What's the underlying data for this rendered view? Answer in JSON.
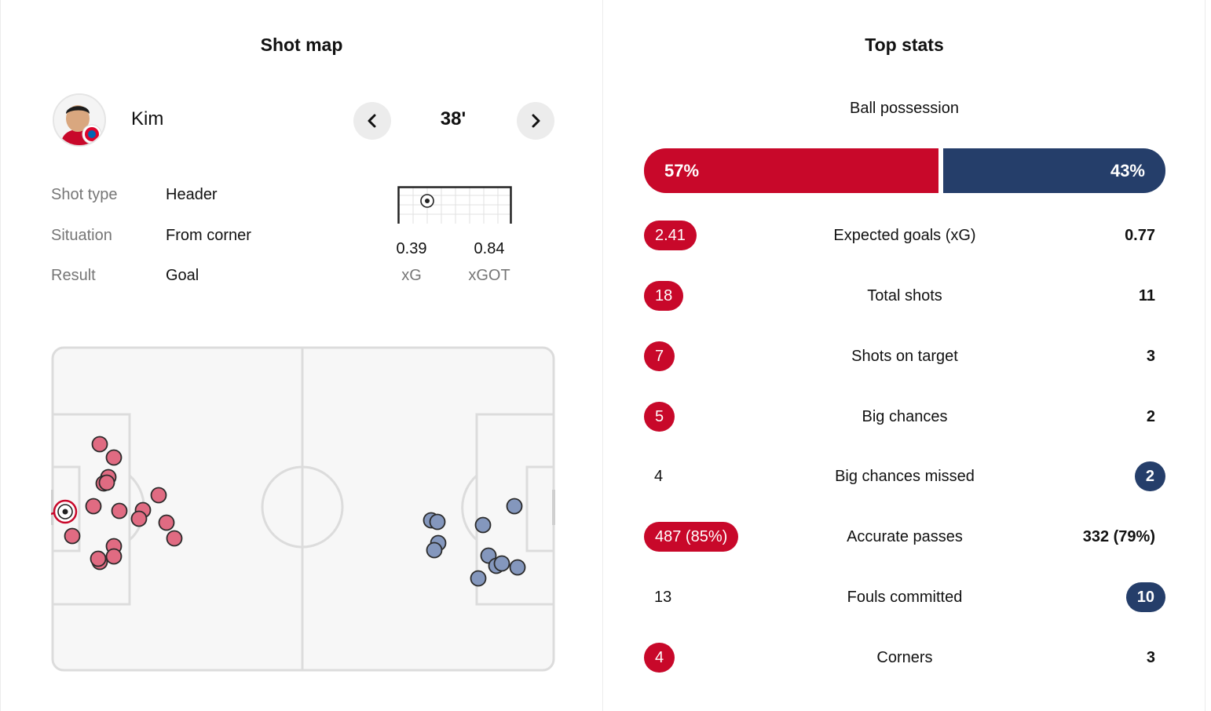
{
  "shot_map": {
    "title": "Shot map",
    "player": {
      "name": "Kim"
    },
    "minute": "38'",
    "details": [
      {
        "label": "Shot type",
        "value": "Header"
      },
      {
        "label": "Situation",
        "value": "From corner"
      },
      {
        "label": "Result",
        "value": "Goal"
      }
    ],
    "xg": {
      "value": "0.39",
      "label": "xG"
    },
    "xgot": {
      "value": "0.84",
      "label": "xGOT"
    }
  },
  "top_stats": {
    "title": "Top stats",
    "possession": {
      "label": "Ball possession",
      "home": "57%",
      "away": "43%",
      "home_fraction": 0.57
    },
    "rows": [
      {
        "name": "Expected goals (xG)",
        "home": "2.41",
        "away": "0.77",
        "highlight": "home"
      },
      {
        "name": "Total shots",
        "home": "18",
        "away": "11",
        "highlight": "home"
      },
      {
        "name": "Shots on target",
        "home": "7",
        "away": "3",
        "highlight": "home"
      },
      {
        "name": "Big chances",
        "home": "5",
        "away": "2",
        "highlight": "home"
      },
      {
        "name": "Big chances missed",
        "home": "4",
        "away": "2",
        "highlight": "away"
      },
      {
        "name": "Accurate passes",
        "home": "487 (85%)",
        "away": "332 (79%)",
        "highlight": "home"
      },
      {
        "name": "Fouls committed",
        "home": "13",
        "away": "10",
        "highlight": "away"
      },
      {
        "name": "Corners",
        "home": "4",
        "away": "3",
        "highlight": "home"
      }
    ]
  },
  "colors": {
    "home": "#c8082a",
    "away": "#253e6a",
    "home_shot": "#e06b82",
    "away_shot": "#8497bd"
  },
  "icons": {
    "prev": "chevron-left-icon",
    "next": "chevron-right-icon",
    "ball": "football-icon"
  }
}
